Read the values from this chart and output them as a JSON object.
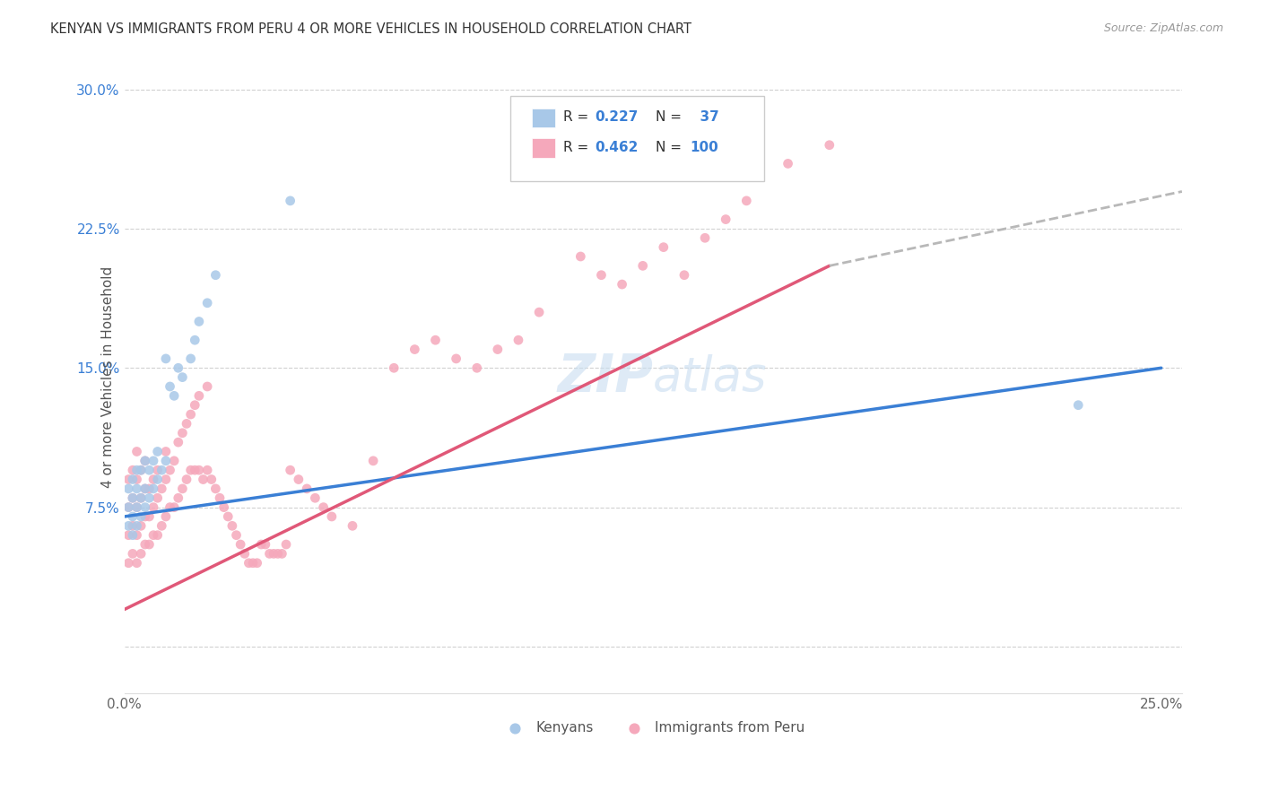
{
  "title": "KENYAN VS IMMIGRANTS FROM PERU 4 OR MORE VEHICLES IN HOUSEHOLD CORRELATION CHART",
  "source": "Source: ZipAtlas.com",
  "ylabel": "4 or more Vehicles in Household",
  "xlim": [
    0.0,
    0.255
  ],
  "ylim": [
    -0.025,
    0.315
  ],
  "x_ticks": [
    0.0,
    0.05,
    0.1,
    0.15,
    0.2,
    0.25
  ],
  "x_tick_labels": [
    "0.0%",
    "",
    "",
    "",
    "",
    "25.0%"
  ],
  "y_ticks": [
    0.0,
    0.075,
    0.15,
    0.225,
    0.3
  ],
  "y_tick_labels": [
    "",
    "7.5%",
    "15.0%",
    "22.5%",
    "30.0%"
  ],
  "legend_r_kenyan": "0.227",
  "legend_n_kenyan": "37",
  "legend_r_peru": "0.462",
  "legend_n_peru": "100",
  "kenyan_color": "#a8c8e8",
  "peru_color": "#f5a8bb",
  "kenyan_line_color": "#3a7fd5",
  "peru_line_color": "#e05878",
  "dashed_line_color": "#b8b8b8",
  "legend_text_color": "#3a7fd5",
  "watermark_color": "#c8ddf0",
  "kenyan_line": [
    0.0,
    0.07,
    0.25,
    0.15
  ],
  "peru_line": [
    0.0,
    0.02,
    0.17,
    0.205
  ],
  "dashed_line": [
    0.17,
    0.205,
    0.255,
    0.245
  ],
  "kenyan_scatter_x": [
    0.001,
    0.001,
    0.001,
    0.002,
    0.002,
    0.002,
    0.002,
    0.003,
    0.003,
    0.003,
    0.003,
    0.004,
    0.004,
    0.004,
    0.005,
    0.005,
    0.005,
    0.006,
    0.006,
    0.007,
    0.007,
    0.008,
    0.008,
    0.009,
    0.01,
    0.01,
    0.011,
    0.012,
    0.013,
    0.014,
    0.016,
    0.017,
    0.018,
    0.02,
    0.022,
    0.23,
    0.04
  ],
  "kenyan_scatter_y": [
    0.065,
    0.075,
    0.085,
    0.06,
    0.07,
    0.08,
    0.09,
    0.065,
    0.075,
    0.085,
    0.095,
    0.07,
    0.08,
    0.095,
    0.075,
    0.085,
    0.1,
    0.08,
    0.095,
    0.085,
    0.1,
    0.09,
    0.105,
    0.095,
    0.1,
    0.155,
    0.14,
    0.135,
    0.15,
    0.145,
    0.155,
    0.165,
    0.175,
    0.185,
    0.2,
    0.13,
    0.24
  ],
  "peru_scatter_x": [
    0.001,
    0.001,
    0.001,
    0.001,
    0.002,
    0.002,
    0.002,
    0.002,
    0.003,
    0.003,
    0.003,
    0.003,
    0.003,
    0.004,
    0.004,
    0.004,
    0.004,
    0.005,
    0.005,
    0.005,
    0.005,
    0.006,
    0.006,
    0.006,
    0.007,
    0.007,
    0.007,
    0.008,
    0.008,
    0.008,
    0.009,
    0.009,
    0.01,
    0.01,
    0.01,
    0.011,
    0.011,
    0.012,
    0.012,
    0.013,
    0.013,
    0.014,
    0.014,
    0.015,
    0.015,
    0.016,
    0.016,
    0.017,
    0.017,
    0.018,
    0.018,
    0.019,
    0.02,
    0.02,
    0.021,
    0.022,
    0.023,
    0.024,
    0.025,
    0.026,
    0.027,
    0.028,
    0.029,
    0.03,
    0.031,
    0.032,
    0.033,
    0.034,
    0.035,
    0.036,
    0.037,
    0.038,
    0.039,
    0.04,
    0.042,
    0.044,
    0.046,
    0.048,
    0.05,
    0.055,
    0.06,
    0.065,
    0.07,
    0.075,
    0.08,
    0.085,
    0.09,
    0.095,
    0.1,
    0.11,
    0.115,
    0.12,
    0.125,
    0.13,
    0.135,
    0.14,
    0.145,
    0.15,
    0.16,
    0.17
  ],
  "peru_scatter_y": [
    0.045,
    0.06,
    0.075,
    0.09,
    0.05,
    0.065,
    0.08,
    0.095,
    0.045,
    0.06,
    0.075,
    0.09,
    0.105,
    0.05,
    0.065,
    0.08,
    0.095,
    0.055,
    0.07,
    0.085,
    0.1,
    0.055,
    0.07,
    0.085,
    0.06,
    0.075,
    0.09,
    0.06,
    0.08,
    0.095,
    0.065,
    0.085,
    0.07,
    0.09,
    0.105,
    0.075,
    0.095,
    0.075,
    0.1,
    0.08,
    0.11,
    0.085,
    0.115,
    0.09,
    0.12,
    0.095,
    0.125,
    0.095,
    0.13,
    0.095,
    0.135,
    0.09,
    0.095,
    0.14,
    0.09,
    0.085,
    0.08,
    0.075,
    0.07,
    0.065,
    0.06,
    0.055,
    0.05,
    0.045,
    0.045,
    0.045,
    0.055,
    0.055,
    0.05,
    0.05,
    0.05,
    0.05,
    0.055,
    0.095,
    0.09,
    0.085,
    0.08,
    0.075,
    0.07,
    0.065,
    0.1,
    0.15,
    0.16,
    0.165,
    0.155,
    0.15,
    0.16,
    0.165,
    0.18,
    0.21,
    0.2,
    0.195,
    0.205,
    0.215,
    0.2,
    0.22,
    0.23,
    0.24,
    0.26,
    0.27
  ]
}
